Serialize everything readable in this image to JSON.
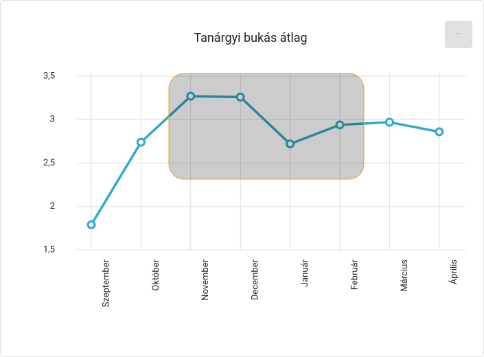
{
  "chart_data": {
    "type": "line",
    "title": "Tanárgyi bukás átlag",
    "menu": "···",
    "categories": [
      "Szeptember",
      "Október",
      "November",
      "December",
      "Január",
      "Február",
      "Március",
      "Április"
    ],
    "series": [
      {
        "name": "Tanárgyi bukás átlag",
        "color": "#31a9c9",
        "values": [
          1.79,
          2.74,
          3.27,
          3.26,
          2.72,
          2.94,
          2.97,
          2.86
        ]
      }
    ],
    "ylim": [
      1.5,
      3.5
    ],
    "yticks": [
      {
        "value": 1.5,
        "label": "1,5"
      },
      2,
      {
        "value": 2.5,
        "label": "2,5"
      },
      3,
      {
        "value": 3.5,
        "label": "3,5"
      }
    ],
    "grid": true
  }
}
